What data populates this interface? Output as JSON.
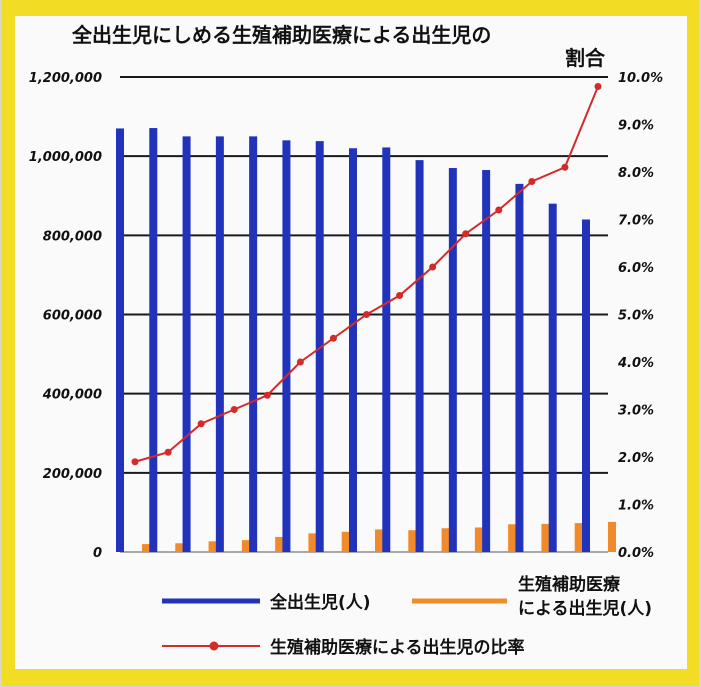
{
  "chart_data": {
    "type": "bar",
    "title_line1": "全出生児にしめる生殖補助医療による出生児の",
    "title_line2": "割合",
    "left_axis": {
      "ticks": [
        "0",
        "200,000",
        "400,000",
        "600,000",
        "800,000",
        "1,000,000",
        "1,200,000"
      ],
      "ylim": [
        0,
        1200000
      ]
    },
    "right_axis": {
      "ticks": [
        "0.0%",
        "1.0%",
        "2.0%",
        "3.0%",
        "4.0%",
        "5.0%",
        "6.0%",
        "7.0%",
        "8.0%",
        "9.0%",
        "10.0%"
      ],
      "ylim": [
        0,
        10
      ]
    },
    "grid": true,
    "legend_position": "bottom",
    "series": [
      {
        "name": "全出生児(人)",
        "kind": "bar",
        "color": "#2233bb",
        "values": [
          1070000,
          1071000,
          1050000,
          1050000,
          1050000,
          1040000,
          1038000,
          1020000,
          1022000,
          990000,
          970000,
          965000,
          930000,
          880000,
          840000
        ]
      },
      {
        "name_line1": "生殖補助医療",
        "name_line2": "による出生児(人)",
        "kind": "bar",
        "color": "#f08a2a",
        "values": [
          20000,
          22000,
          27000,
          30000,
          38000,
          47000,
          51000,
          57000,
          55000,
          60000,
          62000,
          70000,
          71000,
          73000,
          76000
        ]
      },
      {
        "name": "生殖補助医療による出生児の比率",
        "kind": "line",
        "axis": "right",
        "color": "#d42a2a",
        "values": [
          1.9,
          2.1,
          2.7,
          3.0,
          3.3,
          4.0,
          4.5,
          5.0,
          5.4,
          6.0,
          6.7,
          7.2,
          7.8,
          8.1,
          9.8
        ]
      }
    ],
    "categories_count": 15
  },
  "colors": {
    "frame": "#f2dc24",
    "paper": "#fafafa"
  }
}
